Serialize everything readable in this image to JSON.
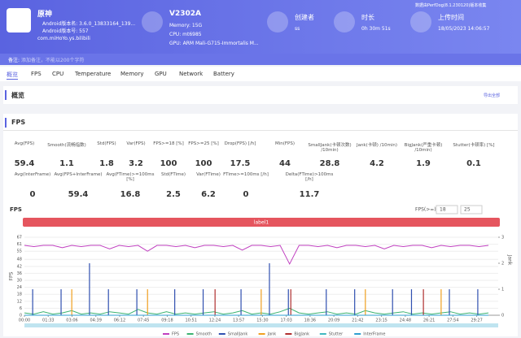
{
  "header": {
    "app_name": "原神",
    "android_version_name": "Android版本名: 3.6.0_13833164_139...",
    "android_version_code": "Android版本号: 557",
    "package": "com.miHoYo.ys.bilibili",
    "device": "V2302A",
    "memory": "Memory: 15G",
    "cpu": "CPU: mt6985",
    "gpu": "GPU: ARM Mali-G715-Immortalis M...",
    "creator_label": "创建者",
    "creator": "ss",
    "duration_label": "时长",
    "duration": "0h 30m 51s",
    "upload_label": "上传时间",
    "upload_time": "18/05/2023 14:06:57",
    "version_note": "数据由PerfDog(8.1.230120)版本收集"
  },
  "notes": {
    "label": "备注:",
    "placeholder": "添加备注，不能以200个字符"
  },
  "tabs": [
    "概览",
    "FPS",
    "CPU",
    "Temperature",
    "Memory",
    "GPU",
    "Network",
    "Battery"
  ],
  "overview": {
    "title": "概览",
    "export": "导出全部"
  },
  "fps_section": {
    "title": "FPS",
    "stats": [
      [
        {
          "label": "Avg(FPS)",
          "value": "59.4"
        },
        {
          "label": "Smooth(流畅指数)",
          "value": "1.1"
        },
        {
          "label": "Std(FPS)",
          "value": "1.8"
        },
        {
          "label": "Var(FPS)",
          "value": "3.2"
        },
        {
          "label": "FPS>=18 [%]",
          "value": "100"
        },
        {
          "label": "FPS>=25 [%]",
          "value": "100"
        },
        {
          "label": "Drop(FPS) [/h]",
          "value": "17.5"
        },
        {
          "label": "Min(FPS)",
          "value": "44"
        },
        {
          "label": "SmallJank(卡顿次数) /10min)",
          "value": "28.8"
        },
        {
          "label": "Jank(卡顿) /10min)",
          "value": "4.2"
        },
        {
          "label": "BigJank(严重卡顿) /10min)",
          "value": "1.9"
        },
        {
          "label": "Stutter(卡顿率) [%]",
          "value": "0.1"
        }
      ],
      [
        {
          "label": "Avg(InterFrame)",
          "value": "0"
        },
        {
          "label": "Avg(FPS+InterFrame)",
          "value": "59.4"
        },
        {
          "label": "Avg(FTime)>=100ms [%]",
          "value": "16.8"
        },
        {
          "label": "Std(FTime)",
          "value": "2.5"
        },
        {
          "label": "Var(FTime)",
          "value": "6.2"
        },
        {
          "label": "FTime>=100ms [/h]",
          "value": "0"
        },
        {
          "label": "Delta(FTime)>100ms [/h]",
          "value": "11.7"
        }
      ]
    ]
  },
  "chart_data": {
    "type": "line",
    "title": "FPS",
    "threshold_label": "FPS(>=)",
    "thresholds": [
      18,
      25
    ],
    "band_label": "label1",
    "y_label": "FPS",
    "y2_label": "Jank",
    "x": [
      0,
      37,
      74,
      111,
      148,
      185,
      222,
      259,
      296,
      333,
      370,
      407,
      444,
      481,
      518,
      555,
      592,
      629,
      666,
      703,
      740,
      777,
      814,
      851,
      888,
      925,
      962,
      999,
      1036,
      1073,
      1110,
      1147,
      1184,
      1221,
      1258,
      1295,
      1332,
      1369,
      1406,
      1443,
      1480,
      1517,
      1554,
      1591,
      1628,
      1665,
      1702,
      1739,
      1776,
      1813
    ],
    "xlim": [
      0,
      1851
    ],
    "xticks": [
      {
        "value": 0,
        "label": "00:00"
      },
      {
        "value": 93,
        "label": "01:33"
      },
      {
        "value": 186,
        "label": "03:06"
      },
      {
        "value": 279,
        "label": "04:39"
      },
      {
        "value": 372,
        "label": "06:12"
      },
      {
        "value": 465,
        "label": "07:45"
      },
      {
        "value": 558,
        "label": "09:18"
      },
      {
        "value": 651,
        "label": "10:51"
      },
      {
        "value": 744,
        "label": "12:24"
      },
      {
        "value": 837,
        "label": "13:57"
      },
      {
        "value": 930,
        "label": "15:30"
      },
      {
        "value": 1023,
        "label": "17:03"
      },
      {
        "value": 1116,
        "label": "18:36"
      },
      {
        "value": 1209,
        "label": "20:09"
      },
      {
        "value": 1302,
        "label": "21:42"
      },
      {
        "value": 1395,
        "label": "23:15"
      },
      {
        "value": 1488,
        "label": "24:48"
      },
      {
        "value": 1581,
        "label": "26:21"
      },
      {
        "value": 1674,
        "label": "27:54"
      },
      {
        "value": 1767,
        "label": "29:27"
      }
    ],
    "ylim": [
      0,
      67
    ],
    "yticks": [
      0,
      6,
      12,
      18,
      24,
      30,
      36,
      42,
      48,
      55,
      61,
      67
    ],
    "y2lim": [
      0,
      3
    ],
    "y2ticks": [
      0,
      1,
      2,
      3
    ],
    "series": [
      {
        "name": "FPS",
        "color": "#c040c0",
        "style": "line",
        "values": [
          60,
          59,
          60,
          60,
          58,
          60,
          59,
          60,
          60,
          57,
          60,
          59,
          60,
          55,
          60,
          60,
          59,
          60,
          58,
          60,
          60,
          59,
          60,
          56,
          60,
          60,
          59,
          60,
          44,
          60,
          60,
          59,
          60,
          58,
          60,
          60,
          59,
          60,
          57,
          60,
          59,
          60,
          60,
          58,
          60,
          59,
          60,
          60,
          59,
          60
        ]
      },
      {
        "name": "Smooth",
        "color": "#3cb371",
        "style": "line",
        "values": [
          2,
          1,
          3,
          1,
          2,
          4,
          1,
          2,
          1,
          3,
          2,
          1,
          5,
          2,
          1,
          3,
          1,
          2,
          1,
          2,
          3,
          1,
          2,
          4,
          1,
          2,
          1,
          3,
          6,
          2,
          1,
          2,
          3,
          1,
          2,
          1,
          4,
          2,
          1,
          2,
          3,
          1,
          2,
          1,
          2,
          3,
          1,
          2,
          1,
          2
        ]
      },
      {
        "name": "SmallJank",
        "color": "#3050b0",
        "style": "bar",
        "axis": "y2",
        "values": [
          0,
          1,
          0,
          0,
          1,
          0,
          0,
          2,
          0,
          1,
          0,
          0,
          1,
          0,
          0,
          0,
          1,
          0,
          0,
          1,
          0,
          0,
          0,
          1,
          0,
          0,
          2,
          0,
          1,
          0,
          0,
          0,
          1,
          0,
          0,
          1,
          0,
          0,
          0,
          1,
          0,
          1,
          0,
          0,
          0,
          1,
          0,
          0,
          1,
          0
        ]
      },
      {
        "name": "Jank",
        "color": "#f0a020",
        "style": "bar",
        "axis": "y2",
        "values": [
          0,
          0,
          0,
          0,
          0,
          1,
          0,
          0,
          0,
          0,
          0,
          0,
          0,
          1,
          0,
          0,
          0,
          0,
          0,
          0,
          0,
          0,
          0,
          0,
          0,
          1,
          0,
          0,
          0,
          0,
          0,
          0,
          0,
          0,
          0,
          0,
          1,
          0,
          0,
          0,
          0,
          0,
          0,
          0,
          1,
          0,
          0,
          0,
          0,
          0
        ]
      },
      {
        "name": "BigJank",
        "color": "#b03030",
        "style": "bar",
        "axis": "y2",
        "values": [
          0,
          0,
          0,
          0,
          0,
          0,
          0,
          0,
          0,
          0,
          0,
          0,
          0,
          0,
          0,
          0,
          0,
          0,
          0,
          0,
          1,
          0,
          0,
          0,
          0,
          0,
          0,
          0,
          1,
          0,
          0,
          0,
          0,
          0,
          0,
          0,
          0,
          0,
          0,
          0,
          0,
          0,
          1,
          0,
          0,
          0,
          0,
          0,
          0,
          0
        ]
      },
      {
        "name": "Stutter",
        "color": "#40b8c0",
        "style": "line",
        "values": [
          0,
          0,
          0,
          0,
          0,
          0,
          0,
          0,
          0,
          0,
          0,
          0,
          0,
          0,
          0,
          0,
          0,
          0,
          0,
          0,
          0,
          0,
          0,
          0,
          0,
          0,
          0,
          0,
          0,
          0,
          0,
          0,
          0,
          0,
          0,
          0,
          0,
          0,
          0,
          0,
          0,
          0,
          0,
          0,
          0,
          0,
          0,
          0,
          0,
          0
        ]
      },
      {
        "name": "InterFrame",
        "color": "#2e9fd0",
        "style": "line",
        "values": [
          0,
          0,
          0,
          0,
          0,
          0,
          0,
          0,
          0,
          0,
          0,
          0,
          0,
          0,
          0,
          0,
          0,
          0,
          0,
          0,
          0,
          0,
          0,
          0,
          0,
          0,
          0,
          0,
          0,
          0,
          0,
          0,
          0,
          0,
          0,
          0,
          0,
          0,
          0,
          0,
          0,
          0,
          0,
          0,
          0,
          0,
          0,
          0,
          0,
          0
        ]
      }
    ],
    "grid": true
  }
}
